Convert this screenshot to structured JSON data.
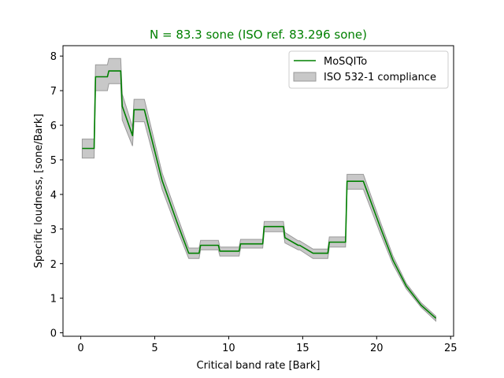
{
  "colors": {
    "line": "#008000",
    "band_fill": "#c8c8c8",
    "band_edge": "#9a9a9a",
    "title": "#008000",
    "legend_border": "#cccccc"
  },
  "chart_data": {
    "type": "line",
    "title": "N = 83.3 sone (ISO ref. 83.296 sone)",
    "xlabel": "Critical band rate [Bark]",
    "ylabel": "Specific loudness, [sone/Bark]",
    "xlim": [
      -1.2,
      25.2
    ],
    "ylim": [
      -0.1,
      8.3
    ],
    "xticks": [
      0,
      5,
      10,
      15,
      20,
      25
    ],
    "yticks": [
      0,
      1,
      2,
      3,
      4,
      5,
      6,
      7,
      8
    ],
    "legend_position": "top-right",
    "series": [
      {
        "name": "MoSQITo",
        "kind": "line",
        "x": [
          0.1,
          0.9,
          1.0,
          1.8,
          1.9,
          2.7,
          2.8,
          3.5,
          3.6,
          4.3,
          5.5,
          6.5,
          7.3,
          8.0,
          8.1,
          9.3,
          9.4,
          10.7,
          10.8,
          12.3,
          12.4,
          13.7,
          13.8,
          14.7,
          14.8,
          15.7,
          15.8,
          16.7,
          16.8,
          17.9,
          18.0,
          19.1,
          20.2,
          21.1,
          22.0,
          23.0,
          24.0
        ],
        "y": [
          5.33,
          5.33,
          7.4,
          7.4,
          7.57,
          7.57,
          6.55,
          5.7,
          6.45,
          6.45,
          4.4,
          3.2,
          2.3,
          2.3,
          2.53,
          2.53,
          2.36,
          2.36,
          2.57,
          2.57,
          3.07,
          3.07,
          2.75,
          2.53,
          2.53,
          2.3,
          2.3,
          2.3,
          2.62,
          2.62,
          4.38,
          4.38,
          3.1,
          2.1,
          1.35,
          0.8,
          0.42
        ]
      },
      {
        "name": "ISO 532-1 compliance",
        "kind": "band",
        "x": [
          0.1,
          0.9,
          1.0,
          1.8,
          1.9,
          2.7,
          2.8,
          3.5,
          3.6,
          4.3,
          5.5,
          6.5,
          7.3,
          8.0,
          8.1,
          9.3,
          9.4,
          10.7,
          10.8,
          12.3,
          12.4,
          13.7,
          13.8,
          14.7,
          14.8,
          15.7,
          15.8,
          16.7,
          16.8,
          17.9,
          18.0,
          19.1,
          20.2,
          21.1,
          22.0,
          23.0,
          24.0
        ],
        "lower": [
          5.05,
          5.05,
          7.0,
          7.0,
          7.2,
          7.2,
          6.15,
          5.4,
          6.1,
          6.1,
          4.15,
          3.0,
          2.15,
          2.15,
          2.4,
          2.4,
          2.22,
          2.22,
          2.45,
          2.45,
          2.92,
          2.92,
          2.6,
          2.4,
          2.4,
          2.15,
          2.15,
          2.15,
          2.48,
          2.48,
          4.15,
          4.15,
          2.92,
          1.98,
          1.27,
          0.74,
          0.34
        ],
        "upper": [
          5.6,
          5.6,
          7.75,
          7.75,
          7.93,
          7.93,
          6.9,
          5.95,
          6.75,
          6.75,
          4.62,
          3.4,
          2.45,
          2.45,
          2.67,
          2.67,
          2.48,
          2.48,
          2.7,
          2.7,
          3.22,
          3.22,
          2.9,
          2.66,
          2.66,
          2.42,
          2.42,
          2.42,
          2.77,
          2.77,
          4.58,
          4.58,
          3.26,
          2.22,
          1.43,
          0.87,
          0.48
        ]
      }
    ]
  }
}
